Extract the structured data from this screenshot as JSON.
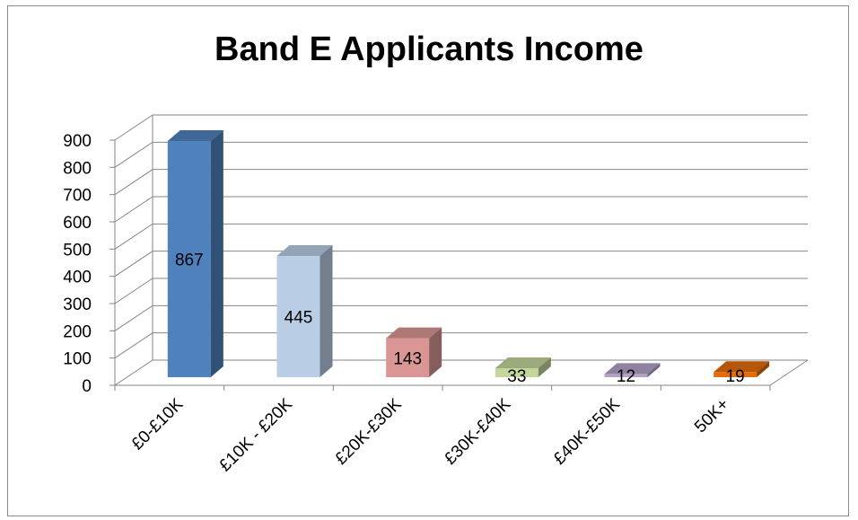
{
  "chart_data": {
    "type": "bar",
    "title": "Band E Applicants Income",
    "categories": [
      "£0-£10K",
      "£10K - £20K",
      "£20K-£30K",
      "£30K-£40K",
      "£40K-£50K",
      "50K+"
    ],
    "values": [
      867,
      445,
      143,
      33,
      12,
      19
    ],
    "ylim": [
      0,
      900
    ],
    "yticks": [
      0,
      100,
      200,
      300,
      400,
      500,
      600,
      700,
      800,
      900
    ],
    "colors": [
      "#4F81BD",
      "#B9CDE5",
      "#D99694",
      "#C3D69B",
      "#B3A2C7",
      "#E46C0A"
    ],
    "grid": true,
    "legend": "none",
    "style": "3d-column"
  }
}
